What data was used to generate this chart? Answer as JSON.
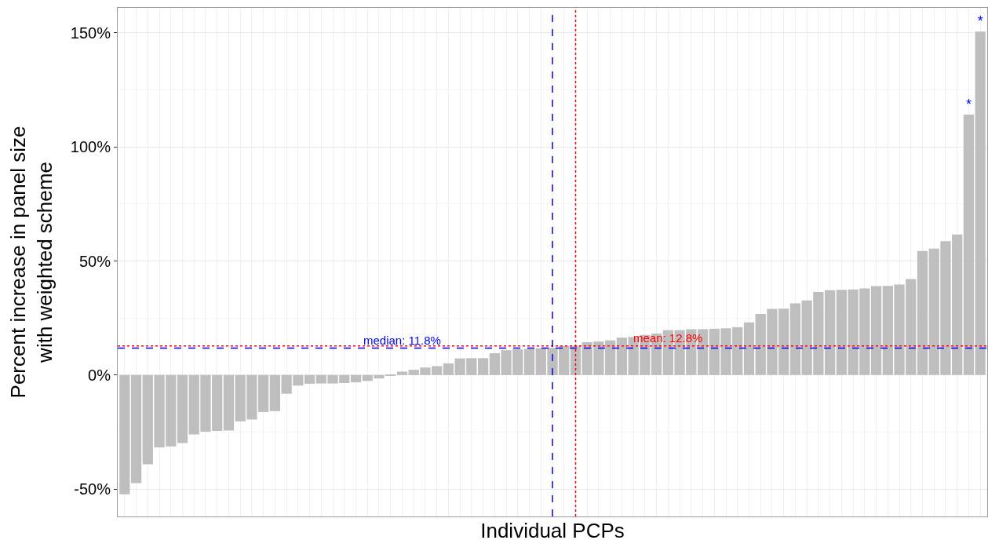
{
  "chart_data": {
    "type": "bar",
    "xlabel": "Individual PCPs",
    "ylabel": "Percent increase in panel size\nwith weighted scheme",
    "categories": [
      null,
      null,
      null,
      null,
      null,
      null,
      null,
      null,
      null,
      null,
      null,
      null,
      null,
      null,
      null,
      null,
      null,
      null,
      null,
      null,
      null,
      null,
      null,
      null,
      null,
      null,
      null,
      null,
      null,
      null,
      null,
      null,
      null,
      null,
      null,
      null,
      null,
      null,
      null,
      null,
      null,
      null,
      null,
      null,
      null,
      null,
      null,
      null,
      null,
      null,
      null,
      null,
      null,
      null,
      null,
      null,
      null,
      null,
      null,
      null,
      null,
      null,
      null,
      null,
      null,
      null,
      null,
      null,
      null,
      null,
      null,
      null,
      null,
      null,
      null
    ],
    "values": [
      -52.3,
      -47.4,
      -39.1,
      -31.7,
      -31.3,
      -29.8,
      -26.0,
      -24.8,
      -24.5,
      -24.3,
      -20.3,
      -19.5,
      -16.2,
      -15.8,
      -8.2,
      -4.6,
      -3.8,
      -3.7,
      -3.7,
      -3.5,
      -3.2,
      -2.6,
      -1.5,
      -0.1,
      1.5,
      2.3,
      3.3,
      3.9,
      5.1,
      7.3,
      7.4,
      7.4,
      9.6,
      10.9,
      11.3,
      11.5,
      11.8,
      12.0,
      12.8,
      12.9,
      14.4,
      14.7,
      15.2,
      16.4,
      16.7,
      17.6,
      18.2,
      19.7,
      19.7,
      20.1,
      20.1,
      20.3,
      20.5,
      21.0,
      23.1,
      26.8,
      29.0,
      29.1,
      31.4,
      32.7,
      36.4,
      37.2,
      37.4,
      37.5,
      38.0,
      39.0,
      39.1,
      39.7,
      42.1,
      54.4,
      55.4,
      58.7,
      61.6,
      114.2,
      150.6
    ],
    "value_labels": [
      null,
      null,
      null,
      null,
      null,
      null,
      null,
      null,
      null,
      null,
      null,
      null,
      null,
      null,
      null,
      null,
      null,
      null,
      null,
      null,
      null,
      null,
      null,
      null,
      null,
      null,
      null,
      null,
      null,
      null,
      null,
      null,
      null,
      null,
      null,
      null,
      null,
      null,
      null,
      null,
      null,
      null,
      null,
      null,
      null,
      null,
      null,
      null,
      null,
      null,
      null,
      null,
      null,
      null,
      null,
      null,
      null,
      null,
      null,
      null,
      null,
      null,
      null,
      null,
      null,
      null,
      null,
      null,
      null,
      null,
      null,
      null,
      null,
      "*",
      "*"
    ],
    "color": "#bebebe",
    "ylim": [
      -62,
      161
    ],
    "yticks": [
      {
        "value": -50,
        "label": "-50%"
      },
      {
        "value": 0,
        "label": "0%"
      },
      {
        "value": 50,
        "label": "50%"
      },
      {
        "value": 100,
        "label": "100%"
      },
      {
        "value": 150,
        "label": "150%"
      }
    ],
    "ref_lines": [
      {
        "axis": "y",
        "value": 11.8,
        "label": "median: 11.8%",
        "color": "#0000ff",
        "line_style": "dashed"
      },
      {
        "axis": "y",
        "value": 12.8,
        "label": "mean: 12.8%",
        "color": "#ff0000",
        "line_style": "dotted"
      }
    ],
    "grid": true,
    "tick_labels": "y"
  }
}
